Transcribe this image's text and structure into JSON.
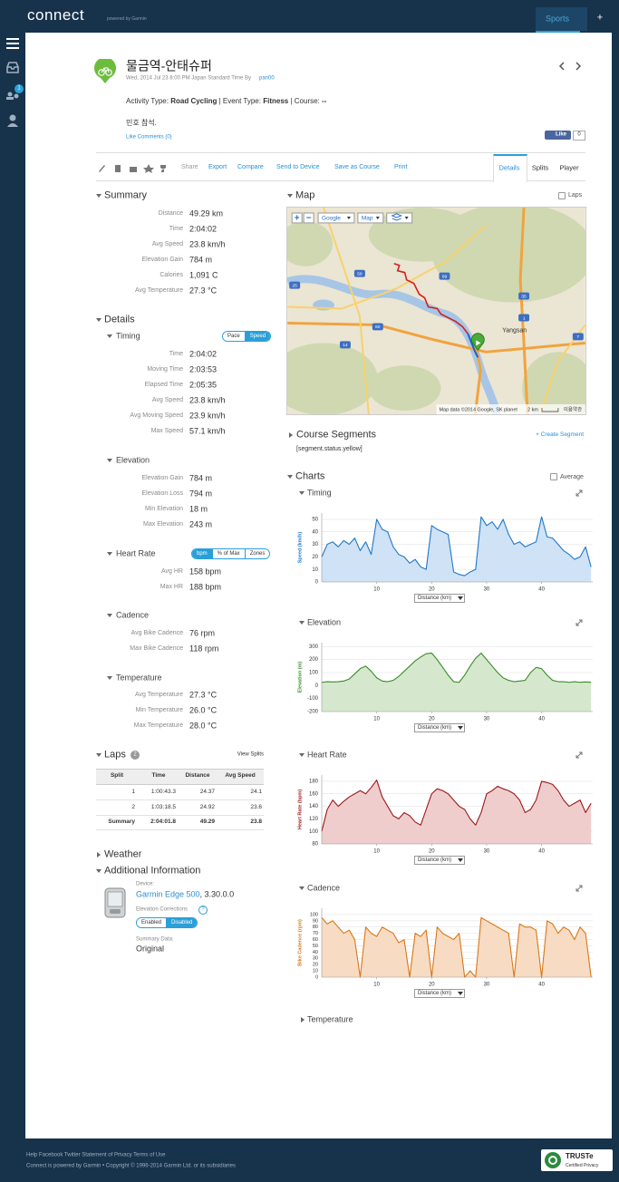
{
  "nav": {
    "logo": "connect",
    "powered": "powered by Garmin",
    "sports": "Sports",
    "plus": "+",
    "badge": "1"
  },
  "activity": {
    "title": "물금역-안태슈퍼",
    "meta": "Wed, 2014 Jul 23 8:00 PM Japan Standard Time By",
    "user": "pan00",
    "type_label": "Activity Type:",
    "type": "Road Cycling",
    "event_label": "| Event Type:",
    "event": "Fitness",
    "course_label": "| Course:",
    "course": "--",
    "description": "민호 참석.",
    "like_comments": "Like Comments (0)",
    "fb_like": "Like",
    "fb_count": "0"
  },
  "toolbar": {
    "actions": [
      "Share",
      "Export",
      "Compare",
      "Send to Device",
      "Save as Course",
      "Print"
    ],
    "tabs": [
      "Details",
      "Splits",
      "Player"
    ],
    "active_tab": 0
  },
  "summary": {
    "title": "Summary",
    "rows": [
      [
        "Distance",
        "49.29 km"
      ],
      [
        "Time",
        "2:04:02"
      ],
      [
        "Avg Speed",
        "23.8 km/h"
      ],
      [
        "Elevation Gain",
        "784 m"
      ],
      [
        "Calories",
        "1,091 C"
      ],
      [
        "Avg Temperature",
        "27.3 °C"
      ]
    ]
  },
  "details": {
    "title": "Details",
    "sections": [
      {
        "title": "Timing",
        "toggles": [
          "Pace",
          "Speed"
        ],
        "active": 1,
        "rows": [
          [
            "Time",
            "2:04:02"
          ],
          [
            "Moving Time",
            "2:03:53"
          ],
          [
            "Elapsed Time",
            "2:05:35"
          ],
          [
            "Avg Speed",
            "23.8 km/h"
          ],
          [
            "Avg Moving Speed",
            "23.9 km/h"
          ],
          [
            "Max Speed",
            "57.1 km/h"
          ]
        ]
      },
      {
        "title": "Elevation",
        "rows": [
          [
            "Elevation Gain",
            "784 m"
          ],
          [
            "Elevation Loss",
            "794 m"
          ],
          [
            "Min Elevation",
            "18 m"
          ],
          [
            "Max Elevation",
            "243 m"
          ]
        ]
      },
      {
        "title": "Heart Rate",
        "toggles": [
          "bpm",
          "% of Max",
          "Zones"
        ],
        "active": 0,
        "rows": [
          [
            "Avg HR",
            "158 bpm"
          ],
          [
            "Max HR",
            "188 bpm"
          ]
        ]
      },
      {
        "title": "Cadence",
        "rows": [
          [
            "Avg Bike Cadence",
            "76 rpm"
          ],
          [
            "Max Bike Cadence",
            "118 rpm"
          ]
        ]
      },
      {
        "title": "Temperature",
        "rows": [
          [
            "Avg Temperature",
            "27.3 °C"
          ],
          [
            "Min Temperature",
            "26.0 °C"
          ],
          [
            "Max Temperature",
            "28.0 °C"
          ]
        ]
      }
    ]
  },
  "laps": {
    "title": "Laps",
    "count": "2",
    "view_splits": "View Splits",
    "columns": [
      "Split",
      "Time",
      "Distance",
      "Avg Speed"
    ],
    "rows": [
      [
        "1",
        "1:00:43.3",
        "24.37",
        "24.1"
      ],
      [
        "2",
        "1:03:18.5",
        "24.92",
        "23.6"
      ],
      [
        "Summary",
        "2:04:01.8",
        "49.29",
        "23.8"
      ]
    ]
  },
  "weather": {
    "title": "Weather"
  },
  "additional": {
    "title": "Additional Information",
    "device_label": "Device:",
    "device": "Garmin Edge 500",
    "firmware": ", 3.30.0.0",
    "elev_label": "Elevation Corrections",
    "elev_help": "?",
    "toggles": [
      "Enabled",
      "Disabled"
    ],
    "active": 1,
    "summary_label": "Summary Data:",
    "summary_value": "Original"
  },
  "map": {
    "title": "Map",
    "laps": "Laps",
    "zoom_in": "+",
    "zoom_out": "−",
    "provider": "Google",
    "maptype": "Map",
    "attribution": "Map data ©2014 Google, SK planet",
    "scale": "2 km",
    "terms": "이용약관",
    "city": "Yangsan",
    "shields": [
      "58",
      "60",
      "14",
      "25",
      "1",
      "7",
      "69",
      "35"
    ]
  },
  "segments": {
    "title": "Course Segments",
    "create": "+ Create Segment",
    "status": "[segment.status.yellow]"
  },
  "charts_panel": {
    "title": "Charts",
    "average": "Average",
    "collapsed": "Temperature"
  },
  "chart_data": [
    {
      "type": "area",
      "title": "Timing",
      "y_label": "Speed (km/h)",
      "x_label": "Distance (km)",
      "color": "#1f78c8",
      "fill_color": "#cfe2f6",
      "x": [
        0,
        1,
        2,
        3,
        4,
        5,
        6,
        7,
        8,
        9,
        10,
        11,
        12,
        13,
        14,
        15,
        16,
        17,
        18,
        19,
        20,
        21,
        22,
        23,
        24,
        25,
        26,
        27,
        28,
        29,
        30,
        31,
        32,
        33,
        34,
        35,
        36,
        37,
        38,
        39,
        40,
        41,
        42,
        43,
        44,
        45,
        46,
        47,
        48,
        49
      ],
      "values": [
        20,
        30,
        32,
        28,
        33,
        30,
        35,
        25,
        32,
        22,
        50,
        42,
        40,
        28,
        22,
        20,
        15,
        18,
        12,
        10,
        45,
        42,
        40,
        38,
        8,
        6,
        5,
        8,
        10,
        52,
        45,
        48,
        42,
        50,
        38,
        30,
        32,
        28,
        30,
        32,
        52,
        36,
        35,
        30,
        25,
        22,
        18,
        20,
        28,
        12
      ],
      "xlim": [
        0,
        49.3
      ],
      "xticks": [
        10,
        20,
        30,
        40
      ],
      "ylim": [
        0,
        55
      ],
      "yticks": [
        0,
        10,
        20,
        30,
        40,
        50
      ],
      "grid": true
    },
    {
      "type": "area",
      "title": "Elevation",
      "y_label": "Elevation (m)",
      "x_label": "Distance (km)",
      "color": "#3a8a2a",
      "fill_color": "#d5e8cd",
      "x": [
        0,
        1,
        2,
        3,
        4,
        5,
        6,
        7,
        8,
        9,
        10,
        11,
        12,
        13,
        14,
        15,
        16,
        17,
        18,
        19,
        20,
        21,
        22,
        23,
        24,
        25,
        26,
        27,
        28,
        29,
        30,
        31,
        32,
        33,
        34,
        35,
        36,
        37,
        38,
        39,
        40,
        41,
        42,
        43,
        44,
        45,
        46,
        47,
        48,
        49
      ],
      "values": [
        25,
        30,
        28,
        30,
        35,
        50,
        90,
        130,
        150,
        110,
        60,
        35,
        30,
        40,
        70,
        110,
        150,
        190,
        220,
        245,
        250,
        200,
        140,
        80,
        30,
        25,
        80,
        150,
        210,
        250,
        200,
        150,
        100,
        60,
        40,
        30,
        35,
        40,
        100,
        140,
        130,
        80,
        40,
        30,
        30,
        25,
        30,
        25,
        28,
        25
      ],
      "xlim": [
        0,
        49.3
      ],
      "xticks": [
        10,
        20,
        30,
        40
      ],
      "ylim": [
        -200,
        330
      ],
      "yticks": [
        -200,
        -100,
        0,
        100,
        200,
        300
      ],
      "grid": true
    },
    {
      "type": "area",
      "title": "Heart Rate",
      "y_label": "Heart Rate (bpm)",
      "x_label": "Distance (km)",
      "color": "#9c1818",
      "fill_color": "#efcdcd",
      "x": [
        0,
        1,
        2,
        3,
        4,
        5,
        6,
        7,
        8,
        9,
        10,
        11,
        12,
        13,
        14,
        15,
        16,
        17,
        18,
        19,
        20,
        21,
        22,
        23,
        24,
        25,
        26,
        27,
        28,
        29,
        30,
        31,
        32,
        33,
        34,
        35,
        36,
        37,
        38,
        39,
        40,
        41,
        42,
        43,
        44,
        45,
        46,
        47,
        48,
        49
      ],
      "values": [
        100,
        135,
        150,
        140,
        148,
        155,
        160,
        165,
        160,
        170,
        182,
        155,
        140,
        125,
        120,
        130,
        125,
        115,
        110,
        135,
        160,
        168,
        165,
        160,
        150,
        140,
        135,
        120,
        110,
        130,
        160,
        165,
        172,
        168,
        165,
        160,
        150,
        130,
        135,
        150,
        180,
        178,
        175,
        165,
        150,
        140,
        145,
        150,
        130,
        145
      ],
      "xlim": [
        0,
        49.3
      ],
      "xticks": [
        10,
        20,
        30,
        40
      ],
      "ylim": [
        80,
        190
      ],
      "yticks": [
        80,
        100,
        120,
        140,
        160,
        180
      ],
      "grid": true
    },
    {
      "type": "area",
      "title": "Cadence",
      "y_label": "Bike Cadence (rpm)",
      "x_label": "Distance (km)",
      "color": "#d9771a",
      "fill_color": "#f7dcc3",
      "x": [
        0,
        1,
        2,
        3,
        4,
        5,
        6,
        7,
        8,
        9,
        10,
        11,
        12,
        13,
        14,
        15,
        16,
        17,
        18,
        19,
        20,
        21,
        22,
        23,
        24,
        25,
        26,
        27,
        28,
        29,
        30,
        31,
        32,
        33,
        34,
        35,
        36,
        37,
        38,
        39,
        40,
        41,
        42,
        43,
        44,
        45,
        46,
        47,
        48,
        49
      ],
      "values": [
        95,
        85,
        90,
        80,
        70,
        75,
        60,
        0,
        80,
        70,
        65,
        80,
        75,
        70,
        55,
        60,
        0,
        70,
        65,
        75,
        0,
        80,
        70,
        65,
        60,
        70,
        0,
        10,
        0,
        95,
        90,
        85,
        80,
        75,
        70,
        0,
        85,
        80,
        80,
        75,
        0,
        90,
        85,
        70,
        80,
        75,
        60,
        80,
        70,
        0
      ],
      "xlim": [
        0,
        49.3
      ],
      "xticks": [
        10,
        20,
        30,
        40
      ],
      "ylim": [
        0,
        110
      ],
      "yticks": [
        0,
        10,
        20,
        30,
        40,
        50,
        60,
        70,
        80,
        90,
        100
      ],
      "grid": true
    }
  ],
  "footer": {
    "links": "Help Facebook Twitter Statement of Privacy Terms of Use",
    "copyright": "Connect is powered by Garmin • Copyright © 1996-2014 Garmin Ltd. or its subsidiaries",
    "truste": "TRUSTe",
    "truste_sub": "Certified Privacy"
  }
}
